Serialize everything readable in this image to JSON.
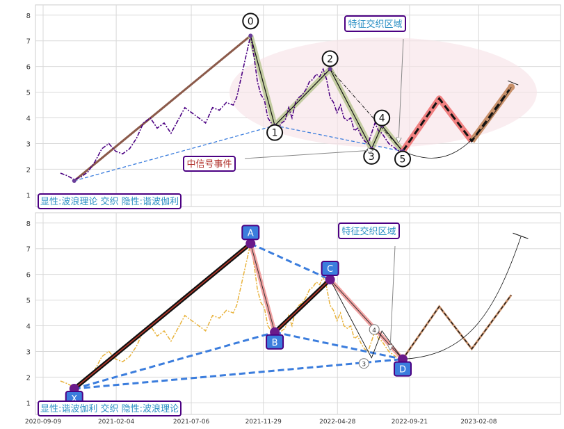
{
  "chart_data": [
    {
      "type": "line",
      "title": "",
      "xlabel": "",
      "ylabel": "",
      "ylim": [
        0.55,
        8.4
      ],
      "yticks": [
        1,
        2,
        3,
        4,
        5,
        6,
        7,
        8
      ],
      "grid": true,
      "price_series": {
        "name": "",
        "color": "#4b0082",
        "x": [
          "2020-10-14",
          "2020-10-28",
          "2020-11-11",
          "2020-11-25",
          "2020-12-09",
          "2020-12-23",
          "2021-01-06",
          "2021-01-20",
          "2021-02-03",
          "2021-02-17",
          "2021-03-03",
          "2021-03-17",
          "2021-03-31",
          "2021-04-14",
          "2021-04-28",
          "2021-05-12",
          "2021-05-26",
          "2021-06-09",
          "2021-06-23",
          "2021-07-07",
          "2021-07-21",
          "2021-08-04",
          "2021-08-18",
          "2021-09-01",
          "2021-09-15",
          "2021-09-29",
          "2021-10-06",
          "2021-10-13",
          "2021-10-20",
          "2021-10-27",
          "2021-11-03",
          "2021-11-10",
          "2021-11-17",
          "2021-11-24",
          "2021-12-01",
          "2021-12-08",
          "2021-12-15",
          "2021-12-22",
          "2021-12-29",
          "2022-01-05",
          "2022-01-12",
          "2022-01-19",
          "2022-01-26",
          "2022-02-02",
          "2022-02-09",
          "2022-02-16",
          "2022-02-23",
          "2022-03-02",
          "2022-03-09",
          "2022-03-16",
          "2022-03-23",
          "2022-03-30",
          "2022-04-06",
          "2022-04-13",
          "2022-04-20",
          "2022-04-27",
          "2022-05-04",
          "2022-05-11",
          "2022-05-18",
          "2022-05-25",
          "2022-06-01",
          "2022-06-08",
          "2022-06-15",
          "2022-06-22",
          "2022-06-29",
          "2022-07-06",
          "2022-07-13",
          "2022-07-20",
          "2022-07-27",
          "2022-08-03",
          "2022-08-10",
          "2022-08-17",
          "2022-08-24",
          "2022-08-31",
          "2022-09-07"
        ],
        "y": [
          1.85,
          1.75,
          1.6,
          1.7,
          1.9,
          2.3,
          2.8,
          3.0,
          2.7,
          2.6,
          2.8,
          3.2,
          3.8,
          4.0,
          3.6,
          3.8,
          3.4,
          3.9,
          4.4,
          4.2,
          4.0,
          3.8,
          4.4,
          4.3,
          4.6,
          4.5,
          4.8,
          5.4,
          6.0,
          6.6,
          7.2,
          6.4,
          5.4,
          4.9,
          4.7,
          4.0,
          3.8,
          3.5,
          3.6,
          3.8,
          3.9,
          4.4,
          4.0,
          4.6,
          4.8,
          4.9,
          5.1,
          5.4,
          5.5,
          5.7,
          5.6,
          5.9,
          5.5,
          4.8,
          4.6,
          4.2,
          4.5,
          4.0,
          3.9,
          4.0,
          3.5,
          3.6,
          3.3,
          3.1,
          3.0,
          3.4,
          3.8,
          3.5,
          3.4,
          3.2,
          3.0,
          2.9,
          2.8,
          2.7,
          2.85
        ]
      },
      "wave_points": [
        {
          "label": "0",
          "x": "2021-11-03",
          "y": 7.2
        },
        {
          "label": "1",
          "x": "2021-12-22",
          "y": 3.7
        },
        {
          "label": "2",
          "x": "2022-04-13",
          "y": 5.9
        },
        {
          "label": "3",
          "x": "2022-07-06",
          "y": 2.8
        },
        {
          "label": "4",
          "x": "2022-07-27",
          "y": 3.7
        },
        {
          "label": "5",
          "x": "2022-09-07",
          "y": 2.7
        }
      ],
      "start_point": {
        "x": "2020-11-11",
        "y": 1.55
      },
      "projection": {
        "x": [
          "2022-09-07",
          "2022-11-20",
          "2023-01-25",
          "2023-04-15"
        ],
        "y": [
          2.7,
          4.75,
          3.1,
          5.2
        ]
      },
      "annotations": {
        "top_label": "特征交织区域",
        "signal_label": "中信号事件",
        "footer_label": "显性:波浪理论 交织 隐性:谐波伽利"
      }
    },
    {
      "type": "line",
      "title": "",
      "xlabel": "",
      "ylabel": "",
      "ylim": [
        0.55,
        8.4
      ],
      "yticks": [
        1,
        2,
        3,
        4,
        5,
        6,
        7,
        8
      ],
      "grid": true,
      "price_series": {
        "name": "",
        "color": "#e8b23a"
      },
      "harmonic_points": [
        {
          "label": "X",
          "x": "2020-11-11",
          "y": 1.55
        },
        {
          "label": "A",
          "x": "2021-11-03",
          "y": 7.2
        },
        {
          "label": "B",
          "x": "2021-12-22",
          "y": 3.75
        },
        {
          "label": "C",
          "x": "2022-04-13",
          "y": 5.8
        },
        {
          "label": "D",
          "x": "2022-09-07",
          "y": 2.7
        }
      ],
      "minor_points": [
        {
          "label": "3",
          "x": "2022-07-06",
          "y": 2.75
        },
        {
          "label": "4",
          "x": "2022-07-27",
          "y": 3.8
        }
      ],
      "projection": {
        "x": [
          "2022-09-07",
          "2022-11-20",
          "2023-01-25",
          "2023-04-15"
        ],
        "y": [
          2.7,
          4.75,
          3.1,
          5.2
        ]
      },
      "annotations": {
        "top_label": "特征交织区域",
        "footer_label": "显性:谐波伽利 交织 隐性:波浪理论"
      }
    }
  ],
  "x_axis": {
    "tick_labels": [
      "2020-09-09",
      "2021-02-04",
      "2021-07-06",
      "2021-11-29",
      "2022-04-28",
      "2022-09-21",
      "2023-02-08"
    ]
  }
}
